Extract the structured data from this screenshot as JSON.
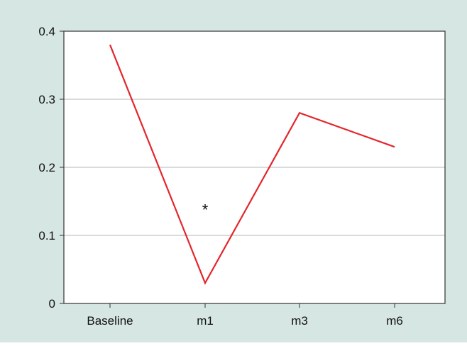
{
  "chart_data": {
    "type": "line",
    "categories": [
      "Baseline",
      "m1",
      "m3",
      "m6"
    ],
    "series": [
      {
        "values": [
          0.38,
          0.03,
          0.28,
          0.23
        ]
      }
    ],
    "ylim": [
      0,
      0.4
    ],
    "yticks": [
      "0",
      "0.1",
      "0.2",
      "0.3",
      "0.4"
    ],
    "grid": true,
    "annotations": [
      {
        "text": "*",
        "category": "m1",
        "y": 0.14
      }
    ],
    "colors": {
      "panel_background": "#d6e6e2",
      "plot_background": "#ffffff",
      "line": "#e3262c",
      "grid": "#b4b4b4",
      "axis": "#333333"
    }
  }
}
